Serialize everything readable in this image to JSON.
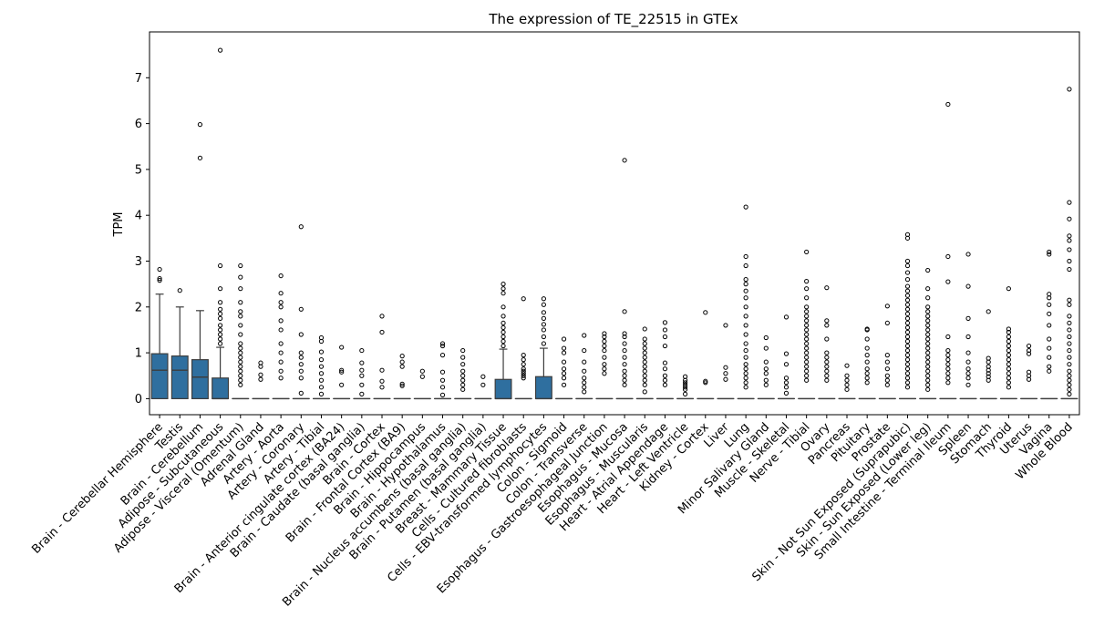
{
  "chart_data": {
    "type": "box",
    "title": "The expression of TE_22515 in GTEx",
    "xlabel": "",
    "ylabel": "TPM",
    "ylim": [
      -0.35,
      8.0
    ],
    "yticks": [
      0,
      1,
      2,
      3,
      4,
      5,
      6,
      7
    ],
    "box_color": "#2f6f9f",
    "grid": false,
    "categories": [
      "Brain - Cerebellar Hemisphere",
      "Testis",
      "Brain - Cerebellum",
      "Adipose - Subcutaneous",
      "Adipose - Visceral (Omentum)",
      "Adrenal Gland",
      "Artery - Aorta",
      "Artery - Coronary",
      "Artery - Tibial",
      "Brain - Anterior cingulate cortex (BA24)",
      "Brain - Caudate (basal ganglia)",
      "Brain - Cortex",
      "Brain - Frontal Cortex (BA9)",
      "Brain - Hippocampus",
      "Brain - Hypothalamus",
      "Brain - Nucleus accumbens (basal ganglia)",
      "Brain - Putamen (basal ganglia)",
      "Breast - Mammary Tissue",
      "Cells - Cultured fibroblasts",
      "Cells - EBV-transformed lymphocytes",
      "Colon - Sigmoid",
      "Colon - Transverse",
      "Esophagus - Gastroesophageal Junction",
      "Esophagus - Mucosa",
      "Esophagus - Muscularis",
      "Heart - Atrial Appendage",
      "Heart - Left Ventricle",
      "Kidney - Cortex",
      "Liver",
      "Lung",
      "Minor Salivary Gland",
      "Muscle - Skeletal",
      "Nerve - Tibial",
      "Ovary",
      "Pancreas",
      "Pituitary",
      "Prostate",
      "Skin - Not Sun Exposed (Suprapubic)",
      "Skin - Sun Exposed (Lower leg)",
      "Small Intestine - Terminal Ileum",
      "Spleen",
      "Stomach",
      "Thyroid",
      "Uterus",
      "Vagina",
      "Whole Blood"
    ],
    "boxes": [
      {
        "q1": 0,
        "median": 0.62,
        "q3": 0.98,
        "whislo": 0,
        "whishi": 2.28,
        "fliers": [
          2.58,
          2.62,
          2.82
        ]
      },
      {
        "q1": 0,
        "median": 0.62,
        "q3": 0.93,
        "whislo": 0,
        "whishi": 2.0,
        "fliers": [
          2.36
        ]
      },
      {
        "q1": 0,
        "median": 0.47,
        "q3": 0.85,
        "whislo": 0,
        "whishi": 1.92,
        "fliers": [
          5.25,
          5.98
        ]
      },
      {
        "q1": 0,
        "median": 0,
        "q3": 0.45,
        "whislo": 0,
        "whishi": 1.12,
        "fliers": [
          1.2,
          1.3,
          1.4,
          1.5,
          1.6,
          1.75,
          1.85,
          1.95,
          2.1,
          2.4,
          2.9,
          7.6
        ]
      },
      {
        "q1": 0,
        "median": 0,
        "q3": 0,
        "whislo": 0,
        "whishi": 0,
        "fliers": [
          0.3,
          0.4,
          0.5,
          0.6,
          0.7,
          0.8,
          0.9,
          1.0,
          1.1,
          1.2,
          1.4,
          1.6,
          1.8,
          1.9,
          2.1,
          2.4,
          2.65,
          2.9
        ]
      },
      {
        "q1": 0,
        "median": 0,
        "q3": 0,
        "whislo": 0,
        "whishi": 0,
        "fliers": [
          0.42,
          0.52,
          0.7,
          0.78
        ]
      },
      {
        "q1": 0,
        "median": 0,
        "q3": 0,
        "whislo": 0,
        "whishi": 0,
        "fliers": [
          0.45,
          0.6,
          0.8,
          1.0,
          1.2,
          1.5,
          1.7,
          2.0,
          2.1,
          2.3,
          2.68
        ]
      },
      {
        "q1": 0,
        "median": 0,
        "q3": 0,
        "whislo": 0,
        "whishi": 0,
        "fliers": [
          0.12,
          0.45,
          0.6,
          0.75,
          0.9,
          1.0,
          1.4,
          1.95,
          3.75
        ]
      },
      {
        "q1": 0,
        "median": 0,
        "q3": 0,
        "whislo": 0,
        "whishi": 0,
        "fliers": [
          0.1,
          0.25,
          0.4,
          0.55,
          0.7,
          0.85,
          1.02,
          1.25,
          1.33
        ]
      },
      {
        "q1": 0,
        "median": 0,
        "q3": 0,
        "whislo": 0,
        "whishi": 0,
        "fliers": [
          0.3,
          0.58,
          0.62,
          1.12
        ]
      },
      {
        "q1": 0,
        "median": 0,
        "q3": 0,
        "whislo": 0,
        "whishi": 0,
        "fliers": [
          0.1,
          0.3,
          0.5,
          0.62,
          0.78,
          1.05
        ]
      },
      {
        "q1": 0,
        "median": 0,
        "q3": 0,
        "whislo": 0,
        "whishi": 0,
        "fliers": [
          0.25,
          0.38,
          0.62,
          1.45,
          1.8
        ]
      },
      {
        "q1": 0,
        "median": 0,
        "q3": 0,
        "whislo": 0,
        "whishi": 0,
        "fliers": [
          0.28,
          0.32,
          0.7,
          0.8,
          0.93
        ]
      },
      {
        "q1": 0,
        "median": 0,
        "q3": 0,
        "whislo": 0,
        "whishi": 0,
        "fliers": [
          0.48,
          0.6
        ]
      },
      {
        "q1": 0,
        "median": 0,
        "q3": 0,
        "whislo": 0,
        "whishi": 0,
        "fliers": [
          0.08,
          0.25,
          0.4,
          0.58,
          0.95,
          1.15,
          1.2
        ]
      },
      {
        "q1": 0,
        "median": 0,
        "q3": 0,
        "whislo": 0,
        "whishi": 0,
        "fliers": [
          0.2,
          0.3,
          0.4,
          0.5,
          0.6,
          0.75,
          0.9,
          1.05
        ]
      },
      {
        "q1": 0,
        "median": 0,
        "q3": 0,
        "whislo": 0,
        "whishi": 0,
        "fliers": [
          0.3,
          0.48
        ]
      },
      {
        "q1": 0,
        "median": 0,
        "q3": 0.42,
        "whislo": 0,
        "whishi": 1.08,
        "fliers": [
          1.15,
          1.25,
          1.35,
          1.45,
          1.55,
          1.65,
          1.8,
          2.0,
          2.3,
          2.4,
          2.5
        ]
      },
      {
        "q1": 0,
        "median": 0,
        "q3": 0,
        "whislo": 0,
        "whishi": 0,
        "fliers": [
          0.45,
          0.5,
          0.55,
          0.6,
          0.65,
          0.75,
          0.85,
          0.95,
          2.18
        ]
      },
      {
        "q1": 0,
        "median": 0,
        "q3": 0.48,
        "whislo": 0,
        "whishi": 1.1,
        "fliers": [
          1.2,
          1.35,
          1.5,
          1.62,
          1.75,
          1.88,
          2.05,
          2.18
        ]
      },
      {
        "q1": 0,
        "median": 0,
        "q3": 0,
        "whislo": 0,
        "whishi": 0,
        "fliers": [
          0.3,
          0.45,
          0.55,
          0.65,
          0.8,
          1.0,
          1.1,
          1.3
        ]
      },
      {
        "q1": 0,
        "median": 0,
        "q3": 0,
        "whislo": 0,
        "whishi": 0,
        "fliers": [
          0.15,
          0.25,
          0.35,
          0.45,
          0.6,
          0.8,
          1.05,
          1.38
        ]
      },
      {
        "q1": 0,
        "median": 0,
        "q3": 0,
        "whislo": 0,
        "whishi": 0,
        "fliers": [
          0.55,
          0.65,
          0.75,
          0.9,
          1.05,
          1.15,
          1.25,
          1.35,
          1.42
        ]
      },
      {
        "q1": 0,
        "median": 0,
        "q3": 0,
        "whislo": 0,
        "whishi": 0,
        "fliers": [
          0.3,
          0.4,
          0.5,
          0.6,
          0.75,
          0.9,
          1.05,
          1.2,
          1.35,
          1.42,
          1.9,
          5.2
        ]
      },
      {
        "q1": 0,
        "median": 0,
        "q3": 0,
        "whislo": 0,
        "whishi": 0,
        "fliers": [
          0.15,
          0.3,
          0.4,
          0.5,
          0.6,
          0.7,
          0.8,
          0.9,
          1.0,
          1.1,
          1.2,
          1.3,
          1.52
        ]
      },
      {
        "q1": 0,
        "median": 0,
        "q3": 0,
        "whislo": 0,
        "whishi": 0,
        "fliers": [
          0.3,
          0.4,
          0.5,
          0.65,
          0.78,
          1.15,
          1.35,
          1.5,
          1.66
        ]
      },
      {
        "q1": 0,
        "median": 0,
        "q3": 0,
        "whislo": 0,
        "whishi": 0,
        "fliers": [
          0.1,
          0.2,
          0.25,
          0.3,
          0.35,
          0.4,
          0.48
        ]
      },
      {
        "q1": 0,
        "median": 0,
        "q3": 0,
        "whislo": 0,
        "whishi": 0,
        "fliers": [
          0.35,
          0.38,
          1.88
        ]
      },
      {
        "q1": 0,
        "median": 0,
        "q3": 0,
        "whislo": 0,
        "whishi": 0,
        "fliers": [
          0.42,
          0.55,
          0.68,
          1.6
        ]
      },
      {
        "q1": 0,
        "median": 0,
        "q3": 0,
        "whislo": 0,
        "whishi": 0,
        "fliers": [
          0.25,
          0.35,
          0.45,
          0.55,
          0.65,
          0.75,
          0.9,
          1.05,
          1.2,
          1.4,
          1.6,
          1.8,
          2.0,
          2.2,
          2.35,
          2.5,
          2.6,
          2.9,
          3.1,
          4.18
        ]
      },
      {
        "q1": 0,
        "median": 0,
        "q3": 0,
        "whislo": 0,
        "whishi": 0,
        "fliers": [
          0.3,
          0.4,
          0.55,
          0.65,
          0.8,
          1.1,
          1.33
        ]
      },
      {
        "q1": 0,
        "median": 0,
        "q3": 0,
        "whislo": 0,
        "whishi": 0,
        "fliers": [
          0.12,
          0.25,
          0.35,
          0.45,
          0.75,
          0.98,
          1.78
        ]
      },
      {
        "q1": 0,
        "median": 0,
        "q3": 0,
        "whislo": 0,
        "whishi": 0,
        "fliers": [
          0.4,
          0.5,
          0.6,
          0.7,
          0.8,
          0.9,
          1.0,
          1.1,
          1.2,
          1.3,
          1.4,
          1.5,
          1.6,
          1.7,
          1.8,
          1.9,
          2.0,
          2.2,
          2.4,
          2.56,
          3.2
        ]
      },
      {
        "q1": 0,
        "median": 0,
        "q3": 0,
        "whislo": 0,
        "whishi": 0,
        "fliers": [
          0.4,
          0.5,
          0.6,
          0.7,
          0.8,
          0.9,
          1.0,
          1.3,
          1.6,
          1.7,
          2.42
        ]
      },
      {
        "q1": 0,
        "median": 0,
        "q3": 0,
        "whislo": 0,
        "whishi": 0,
        "fliers": [
          0.2,
          0.3,
          0.4,
          0.5,
          0.72
        ]
      },
      {
        "q1": 0,
        "median": 0,
        "q3": 0,
        "whislo": 0,
        "whishi": 0,
        "fliers": [
          0.35,
          0.45,
          0.55,
          0.65,
          0.8,
          0.95,
          1.1,
          1.3,
          1.5,
          1.52
        ]
      },
      {
        "q1": 0,
        "median": 0,
        "q3": 0,
        "whislo": 0,
        "whishi": 0,
        "fliers": [
          0.3,
          0.4,
          0.5,
          0.65,
          0.8,
          0.95,
          1.65,
          2.02
        ]
      },
      {
        "q1": 0,
        "median": 0,
        "q3": 0,
        "whislo": 0,
        "whishi": 0,
        "fliers": [
          0.25,
          0.35,
          0.45,
          0.55,
          0.65,
          0.75,
          0.85,
          0.95,
          1.05,
          1.15,
          1.25,
          1.35,
          1.45,
          1.55,
          1.65,
          1.75,
          1.85,
          1.95,
          2.05,
          2.15,
          2.25,
          2.35,
          2.45,
          2.6,
          2.75,
          2.9,
          3.0,
          3.5,
          3.58
        ]
      },
      {
        "q1": 0,
        "median": 0,
        "q3": 0,
        "whislo": 0,
        "whishi": 0,
        "fliers": [
          0.2,
          0.3,
          0.4,
          0.5,
          0.6,
          0.7,
          0.8,
          0.9,
          1.0,
          1.1,
          1.2,
          1.3,
          1.4,
          1.5,
          1.6,
          1.7,
          1.8,
          1.9,
          2.0,
          2.2,
          2.4,
          2.8
        ]
      },
      {
        "q1": 0,
        "median": 0,
        "q3": 0,
        "whislo": 0,
        "whishi": 0,
        "fliers": [
          0.35,
          0.45,
          0.55,
          0.65,
          0.75,
          0.85,
          0.95,
          1.05,
          1.35,
          2.55,
          3.1,
          6.42
        ]
      },
      {
        "q1": 0,
        "median": 0,
        "q3": 0,
        "whislo": 0,
        "whishi": 0,
        "fliers": [
          0.3,
          0.45,
          0.55,
          0.65,
          0.8,
          1.0,
          1.35,
          1.75,
          2.45,
          3.15
        ]
      },
      {
        "q1": 0,
        "median": 0,
        "q3": 0,
        "whislo": 0,
        "whishi": 0,
        "fliers": [
          0.4,
          0.48,
          0.55,
          0.62,
          0.7,
          0.8,
          0.88,
          1.9
        ]
      },
      {
        "q1": 0,
        "median": 0,
        "q3": 0,
        "whislo": 0,
        "whishi": 0,
        "fliers": [
          0.25,
          0.35,
          0.45,
          0.55,
          0.65,
          0.75,
          0.85,
          0.95,
          1.05,
          1.15,
          1.25,
          1.35,
          1.45,
          1.52,
          2.4
        ]
      },
      {
        "q1": 0,
        "median": 0,
        "q3": 0,
        "whislo": 0,
        "whishi": 0,
        "fliers": [
          0.42,
          0.5,
          0.58,
          0.98,
          1.05,
          1.15
        ]
      },
      {
        "q1": 0,
        "median": 0,
        "q3": 0,
        "whislo": 0,
        "whishi": 0,
        "fliers": [
          0.6,
          0.7,
          0.9,
          1.1,
          1.3,
          1.6,
          1.85,
          2.05,
          2.2,
          2.28,
          3.15,
          3.2
        ]
      },
      {
        "q1": 0,
        "median": 0,
        "q3": 0,
        "whislo": 0,
        "whishi": 0,
        "fliers": [
          0.1,
          0.2,
          0.3,
          0.4,
          0.5,
          0.6,
          0.75,
          0.9,
          1.05,
          1.2,
          1.35,
          1.5,
          1.65,
          1.8,
          2.05,
          2.15,
          2.82,
          3.0,
          3.25,
          3.45,
          3.55,
          3.92,
          4.28,
          6.75
        ]
      }
    ]
  }
}
